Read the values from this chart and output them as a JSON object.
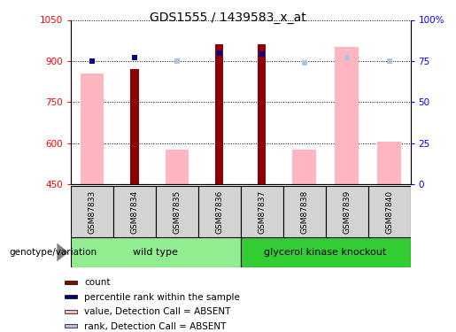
{
  "title": "GDS1555 / 1439583_x_at",
  "samples": [
    "GSM87833",
    "GSM87834",
    "GSM87835",
    "GSM87836",
    "GSM87837",
    "GSM87838",
    "GSM87839",
    "GSM87840"
  ],
  "ylim_left": [
    450,
    1050
  ],
  "ylim_right": [
    0,
    100
  ],
  "yticks_left": [
    450,
    600,
    750,
    900,
    1050
  ],
  "yticks_right": [
    0,
    25,
    50,
    75,
    100
  ],
  "ytick_labels_right": [
    "0",
    "25",
    "50",
    "75",
    "100%"
  ],
  "count_values": [
    null,
    870,
    null,
    960,
    960,
    null,
    null,
    null
  ],
  "value_absent": [
    855,
    null,
    575,
    null,
    null,
    575,
    950,
    605
  ],
  "percentile_right": [
    75,
    77,
    null,
    80,
    79,
    null,
    null,
    null
  ],
  "rank_absent_right": [
    75,
    null,
    75,
    null,
    null,
    74,
    77,
    75
  ],
  "bar_color_count": "#8B0000",
  "bar_color_percentile": "#00008B",
  "bar_color_value": "#FFB6C1",
  "bar_color_rank": "#B0C4DE",
  "group_color_wt": "#90EE90",
  "group_color_gk": "#32CD32",
  "group_label_wt": "wild type",
  "group_label_gk": "glycerol kinase knockout",
  "legend_items": [
    {
      "label": "count",
      "color": "#8B0000"
    },
    {
      "label": "percentile rank within the sample",
      "color": "#00008B"
    },
    {
      "label": "value, Detection Call = ABSENT",
      "color": "#FFB6C1"
    },
    {
      "label": "rank, Detection Call = ABSENT",
      "color": "#B0C4DE"
    }
  ],
  "genotype_label": "genotype/variation"
}
